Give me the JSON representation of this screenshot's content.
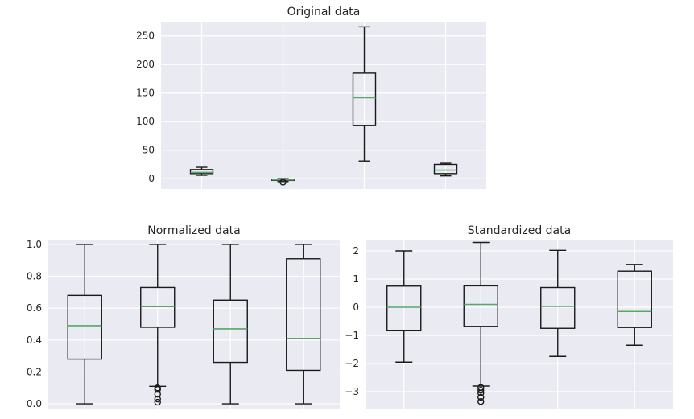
{
  "chart_data": [
    {
      "type": "box",
      "title": "Original data",
      "ylim": [
        -18,
        275
      ],
      "yticks": [
        0,
        50,
        100,
        150,
        200,
        250
      ],
      "yticklabels": [
        "0",
        "50",
        "100",
        "150",
        "200",
        "250"
      ],
      "grid": true,
      "boxes": [
        {
          "lower_whisker": 6,
          "q1": 9,
          "median": 11,
          "q3": 16,
          "upper_whisker": 20,
          "fliers": []
        },
        {
          "lower_whisker": -5,
          "q1": -3,
          "median": -2,
          "q3": -1,
          "upper_whisker": 0,
          "fliers": [
            -6
          ]
        },
        {
          "lower_whisker": 31,
          "q1": 93,
          "median": 142,
          "q3": 185,
          "upper_whisker": 266,
          "fliers": []
        },
        {
          "lower_whisker": 5,
          "q1": 9,
          "median": 15,
          "q3": 25,
          "upper_whisker": 27,
          "fliers": []
        }
      ]
    },
    {
      "type": "box",
      "title": "Normalized data",
      "ylim": [
        -0.03,
        1.03
      ],
      "yticks": [
        0.0,
        0.2,
        0.4,
        0.6,
        0.8,
        1.0
      ],
      "yticklabels": [
        "0.0",
        "0.2",
        "0.4",
        "0.6",
        "0.8",
        "1.0"
      ],
      "grid": true,
      "boxes": [
        {
          "lower_whisker": 0.0,
          "q1": 0.28,
          "median": 0.49,
          "q3": 0.68,
          "upper_whisker": 1.0,
          "fliers": []
        },
        {
          "lower_whisker": 0.11,
          "q1": 0.48,
          "median": 0.61,
          "q3": 0.73,
          "upper_whisker": 1.0,
          "fliers": [
            0.1,
            0.09,
            0.06,
            0.03,
            0.01
          ]
        },
        {
          "lower_whisker": 0.0,
          "q1": 0.26,
          "median": 0.47,
          "q3": 0.65,
          "upper_whisker": 1.0,
          "fliers": []
        },
        {
          "lower_whisker": 0.0,
          "q1": 0.21,
          "median": 0.41,
          "q3": 0.91,
          "upper_whisker": 1.0,
          "fliers": []
        }
      ]
    },
    {
      "type": "box",
      "title": "Standardized data",
      "ylim": [
        -3.6,
        2.4
      ],
      "yticks": [
        -3,
        -2,
        -1,
        0,
        1,
        2
      ],
      "yticklabels": [
        "−3",
        "−2",
        "−1",
        "0",
        "1",
        "2"
      ],
      "grid": true,
      "boxes": [
        {
          "lower_whisker": -1.95,
          "q1": -0.82,
          "median": 0.0,
          "q3": 0.75,
          "upper_whisker": 2.0,
          "fliers": []
        },
        {
          "lower_whisker": -2.8,
          "q1": -0.68,
          "median": 0.1,
          "q3": 0.76,
          "upper_whisker": 2.3,
          "fliers": [
            -2.85,
            -2.95,
            -3.05,
            -3.2,
            -3.35
          ]
        },
        {
          "lower_whisker": -1.75,
          "q1": -0.75,
          "median": 0.03,
          "q3": 0.7,
          "upper_whisker": 2.02,
          "fliers": []
        },
        {
          "lower_whisker": -1.35,
          "q1": -0.72,
          "median": -0.15,
          "q3": 1.28,
          "upper_whisker": 1.52,
          "fliers": []
        }
      ]
    }
  ]
}
